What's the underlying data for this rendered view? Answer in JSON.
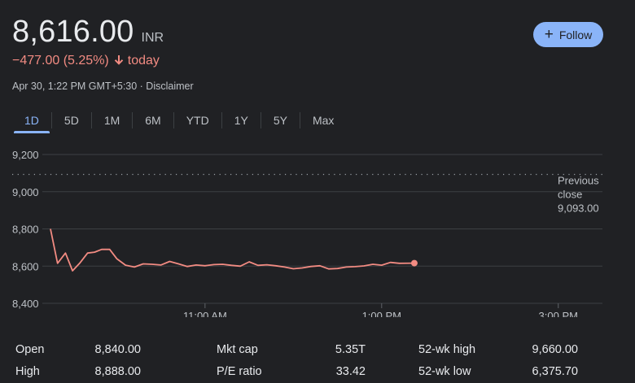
{
  "header": {
    "price": "8,616.00",
    "currency": "INR",
    "change": "−477.00 (5.25%)",
    "change_suffix": "today",
    "timestamp": "Apr 30, 1:22 PM GMT+5:30 · Disclaimer",
    "follow_label": "Follow",
    "down_color": "#f28b82",
    "accent_color": "#8ab4f8"
  },
  "tabs": [
    {
      "label": "1D",
      "active": true
    },
    {
      "label": "5D"
    },
    {
      "label": "1M"
    },
    {
      "label": "6M"
    },
    {
      "label": "YTD"
    },
    {
      "label": "1Y"
    },
    {
      "label": "5Y"
    },
    {
      "label": "Max"
    }
  ],
  "chart_data": {
    "type": "line",
    "yticks": [
      "9,200",
      "9,000",
      "8,800",
      "8,600",
      "8,400"
    ],
    "ylim": [
      8400,
      9200
    ],
    "xticks": [
      "11:00 AM",
      "1:00 PM",
      "3:00 PM"
    ],
    "x_unit": "hours",
    "xlim": [
      9.25,
      15.5
    ],
    "grid": true,
    "previous_close": {
      "label_line1": "Previous",
      "label_line2": "close",
      "value_text": "9,093.00",
      "value": 9093
    },
    "series": [
      {
        "x": [
          9.25,
          9.33,
          9.42,
          9.5,
          9.58,
          9.67,
          9.75,
          9.83,
          9.92,
          10.0,
          10.1,
          10.2,
          10.3,
          10.4,
          10.5,
          10.6,
          10.7,
          10.8,
          10.9,
          11.0,
          11.1,
          11.2,
          11.3,
          11.4,
          11.5,
          11.6,
          11.7,
          11.8,
          11.9,
          12.0,
          12.1,
          12.2,
          12.3,
          12.4,
          12.5,
          12.6,
          12.7,
          12.8,
          12.9,
          13.0,
          13.1,
          13.2,
          13.37
        ],
        "y": [
          8800,
          8615,
          8670,
          8575,
          8615,
          8670,
          8675,
          8690,
          8690,
          8640,
          8605,
          8595,
          8612,
          8610,
          8606,
          8625,
          8612,
          8598,
          8606,
          8602,
          8608,
          8610,
          8604,
          8600,
          8623,
          8604,
          8607,
          8602,
          8595,
          8586,
          8590,
          8598,
          8602,
          8585,
          8587,
          8595,
          8597,
          8601,
          8610,
          8605,
          8620,
          8615,
          8616
        ],
        "color": "#f28b82"
      }
    ]
  },
  "stats": [
    {
      "label": "Open",
      "value": "8,840.00"
    },
    {
      "label": "Mkt cap",
      "value": "5.35T"
    },
    {
      "label": "52-wk high",
      "value": "9,660.00"
    },
    {
      "label": "High",
      "value": "8,888.00"
    },
    {
      "label": "P/E ratio",
      "value": "33.42"
    },
    {
      "label": "52-wk low",
      "value": "6,375.70"
    }
  ]
}
